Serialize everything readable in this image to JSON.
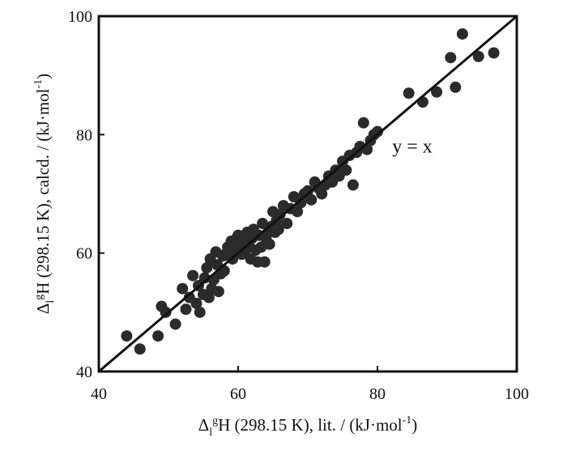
{
  "chart_data": {
    "type": "scatter",
    "title": "",
    "xlabel": {
      "delta": "Δ",
      "sub": "l",
      "sup": "g",
      "text": "H (298.15 K), lit. / (kJ·mol",
      "exp": "-1",
      "close": ")"
    },
    "ylabel": {
      "delta": "Δ",
      "sub": "l",
      "sup": "g",
      "text": "H (298.15 K), calcd. / (kJ·mol",
      "exp": "-1",
      "close": ")"
    },
    "xlim": [
      40,
      100
    ],
    "ylim": [
      40,
      100
    ],
    "xticks": [
      40,
      60,
      80,
      100
    ],
    "yticks": [
      40,
      60,
      80,
      100
    ],
    "grid": false,
    "annotations": [
      {
        "text": "y = x",
        "x": 85,
        "y": 77
      }
    ],
    "line": {
      "label": "y = x",
      "from": [
        40,
        40
      ],
      "to": [
        100,
        100
      ],
      "color": "#111111"
    },
    "marker_color": "#2b2b2b",
    "series": [
      {
        "x": [
          44.0,
          45.9,
          48.5,
          49.0,
          49.6,
          51.0,
          52.0,
          52.5,
          53.0,
          53.5,
          54.0,
          54.3,
          54.5,
          55.0,
          55.2,
          55.5,
          55.8,
          56.0,
          56.2,
          56.5,
          56.8,
          57.0,
          57.2,
          57.5,
          57.8,
          58.0,
          58.3,
          58.5,
          58.8,
          59.0,
          59.2,
          59.5,
          59.8,
          60.0,
          60.2,
          60.5,
          60.8,
          61.0,
          61.3,
          61.5,
          61.8,
          62.0,
          62.2,
          62.5,
          62.8,
          63.0,
          63.3,
          63.5,
          63.8,
          64.0,
          64.3,
          64.5,
          64.8,
          65.0,
          65.3,
          65.5,
          65.8,
          66.0,
          66.5,
          67.0,
          67.5,
          68.0,
          68.5,
          69.0,
          69.5,
          70.0,
          70.5,
          71.0,
          71.5,
          72.0,
          72.5,
          73.0,
          73.5,
          74.0,
          74.5,
          75.0,
          75.5,
          76.0,
          76.5,
          77.0,
          77.5,
          78.0,
          78.5,
          79.0,
          79.5,
          80.0,
          84.5,
          86.5,
          88.5,
          90.5,
          91.2,
          92.2,
          94.5,
          96.7
        ],
        "y": [
          46.0,
          43.8,
          46.0,
          51.0,
          50.0,
          48.0,
          54.0,
          50.5,
          52.5,
          56.2,
          51.5,
          54.5,
          50.0,
          53.0,
          55.8,
          57.5,
          52.5,
          59.0,
          54.0,
          55.5,
          60.2,
          58.0,
          53.5,
          56.5,
          59.5,
          57.0,
          60.0,
          61.0,
          59.5,
          62.0,
          59.0,
          60.5,
          62.5,
          63.0,
          61.0,
          59.8,
          62.2,
          60.5,
          63.5,
          61.5,
          59.0,
          62.5,
          64.0,
          60.5,
          58.5,
          63.0,
          61.0,
          65.0,
          58.5,
          62.5,
          63.5,
          61.5,
          64.5,
          67.0,
          63.5,
          65.5,
          64.0,
          66.5,
          68.0,
          65.0,
          67.5,
          69.5,
          67.0,
          68.5,
          70.0,
          70.5,
          69.0,
          72.0,
          71.0,
          70.0,
          71.5,
          73.0,
          72.0,
          74.0,
          73.0,
          75.5,
          74.0,
          76.5,
          71.5,
          77.0,
          78.0,
          82.0,
          77.5,
          79.0,
          80.0,
          80.5,
          87.0,
          85.5,
          87.2,
          93.0,
          88.0,
          97.0,
          93.2,
          93.8
        ]
      }
    ]
  }
}
